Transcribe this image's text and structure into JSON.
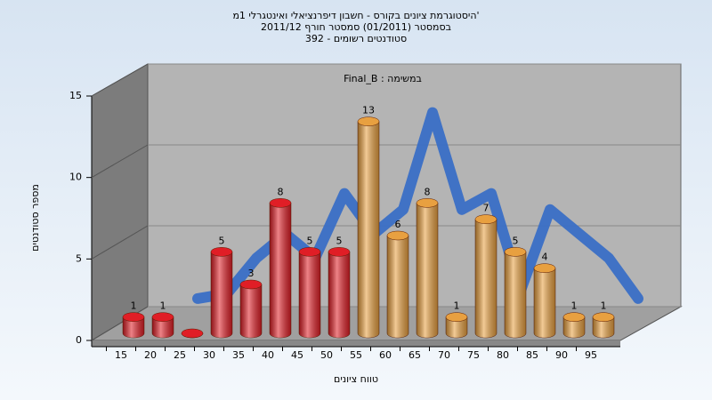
{
  "chart_data": {
    "type": "bar",
    "title_lines": [
      "היסטוגרמת ציונים בקורס - חשבון דיפרנציאלי ואינטגרלי 1מ'",
      "בסמסטר (01/2011) סמסטר חורף 2011/12",
      "392 - סטודנטים רשומים"
    ],
    "annotation": "Final_B : במשימה",
    "x_label": "טווח ציונים",
    "y_label": "מספר סטודנטים",
    "categories": [
      "15",
      "20",
      "25",
      "30",
      "35",
      "40",
      "45",
      "50",
      "55",
      "60",
      "65",
      "70",
      "75",
      "80",
      "85",
      "90",
      "95"
    ],
    "series": [
      {
        "type": "bar",
        "values": [
          1,
          1,
          0,
          5,
          3,
          8,
          5,
          5,
          13,
          6,
          8,
          1,
          7,
          5,
          4,
          1,
          1
        ],
        "colors": [
          "#e01e26",
          "#e01e26",
          "#e01e26",
          "#e01e26",
          "#e01e26",
          "#e01e26",
          "#e01e26",
          "#e01e26",
          "#e8a040",
          "#e8a040",
          "#e8a040",
          "#e8a040",
          "#e8a040",
          "#e8a040",
          "#e8a040",
          "#e8a040",
          "#e8a040"
        ]
      },
      {
        "type": "line",
        "color": "#3a6fc6",
        "values": [
          null,
          0.5,
          0.8,
          3,
          4.5,
          3,
          7,
          4.5,
          6,
          12,
          6,
          7,
          1,
          6,
          4.5,
          3,
          0.5
        ]
      }
    ],
    "ylim": [
      0,
      15
    ],
    "yticks": [
      0,
      5,
      10,
      15
    ],
    "grid": true
  }
}
